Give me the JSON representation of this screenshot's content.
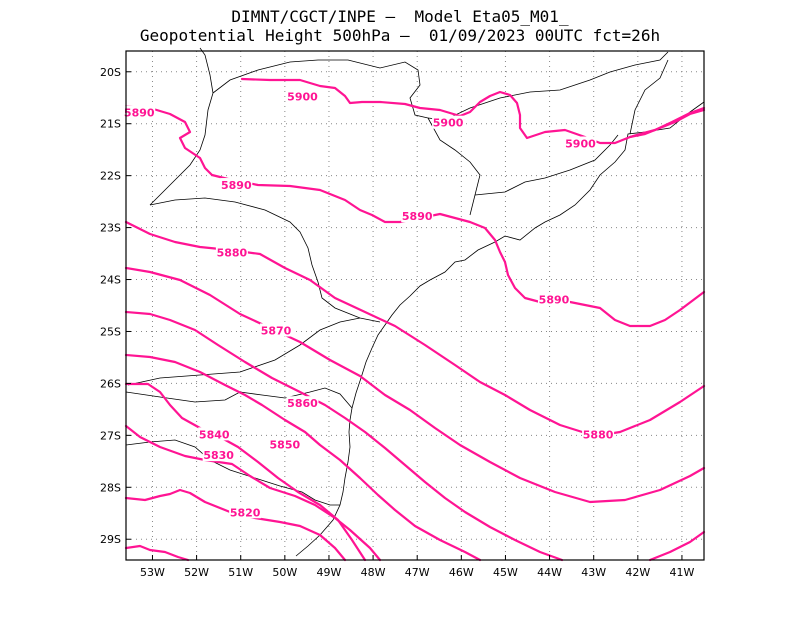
{
  "title_line1": "DIMNT/CGCT/INPE –  Model Eta05_M01_",
  "title_line2": "Geopotential Height 500hPa –  01/09/2023 00UTC fct=26h",
  "map": {
    "lon_range": [
      -53.6,
      -40.5
    ],
    "lat_range": [
      -29.4,
      -19.6
    ],
    "lat_ticks": [
      {
        "value": -20,
        "label": "20S"
      },
      {
        "value": -21,
        "label": "21S"
      },
      {
        "value": -22,
        "label": "22S"
      },
      {
        "value": -23,
        "label": "23S"
      },
      {
        "value": -24,
        "label": "24S"
      },
      {
        "value": -25,
        "label": "25S"
      },
      {
        "value": -26,
        "label": "26S"
      },
      {
        "value": -27,
        "label": "27S"
      },
      {
        "value": -28,
        "label": "28S"
      },
      {
        "value": -29,
        "label": "29S"
      }
    ],
    "lon_ticks": [
      {
        "value": -53,
        "label": "53W"
      },
      {
        "value": -52,
        "label": "52W"
      },
      {
        "value": -51,
        "label": "51W"
      },
      {
        "value": -50,
        "label": "50W"
      },
      {
        "value": -49,
        "label": "49W"
      },
      {
        "value": -48,
        "label": "48W"
      },
      {
        "value": -47,
        "label": "47W"
      },
      {
        "value": -46,
        "label": "46W"
      },
      {
        "value": -45,
        "label": "45W"
      },
      {
        "value": -44,
        "label": "44W"
      },
      {
        "value": -43,
        "label": "43W"
      },
      {
        "value": -42,
        "label": "42W"
      },
      {
        "value": -41,
        "label": "41W"
      }
    ],
    "grid": "dotted",
    "contour_color": "#ff1493"
  },
  "chart_data": {
    "type": "contour",
    "variable": "Geopotential Height 500hPa",
    "contour_labels": [
      {
        "label": "5900",
        "lon": -49.6,
        "lat": -20.5
      },
      {
        "label": "5900",
        "lon": -46.3,
        "lat": -21.0
      },
      {
        "label": "5900",
        "lon": -43.3,
        "lat": -21.4
      },
      {
        "label": "5890",
        "lon": -53.3,
        "lat": -20.8
      },
      {
        "label": "5890",
        "lon": -51.1,
        "lat": -22.2
      },
      {
        "label": "5890",
        "lon": -47.0,
        "lat": -22.8
      },
      {
        "label": "5890",
        "lon": -43.9,
        "lat": -24.4
      },
      {
        "label": "5880",
        "lon": -42.9,
        "lat": -27.0
      },
      {
        "label": "5880",
        "lon": -51.2,
        "lat": -23.5
      },
      {
        "label": "5870",
        "lon": -50.2,
        "lat": -25.0
      },
      {
        "label": "5860",
        "lon": -49.6,
        "lat": -26.4
      },
      {
        "label": "5850",
        "lon": -50.0,
        "lat": -27.2
      },
      {
        "label": "5840",
        "lon": -51.6,
        "lat": -27.0
      },
      {
        "label": "5830",
        "lon": -51.5,
        "lat": -27.4
      },
      {
        "label": "5820",
        "lon": -50.9,
        "lat": -28.5
      }
    ]
  }
}
